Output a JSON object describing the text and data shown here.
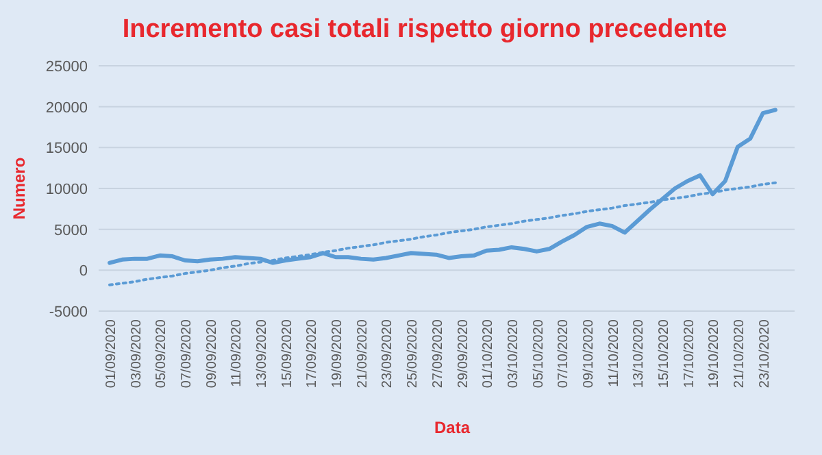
{
  "chart_data": {
    "type": "line",
    "title": "Incremento casi totali rispetto giorno precedente",
    "xlabel": "Data",
    "ylabel": "Numero",
    "categories": [
      "01/09/2020",
      null,
      "03/09/2020",
      null,
      "05/09/2020",
      null,
      "07/09/2020",
      null,
      "09/09/2020",
      null,
      "11/09/2020",
      null,
      "13/09/2020",
      null,
      "15/09/2020",
      null,
      "17/09/2020",
      null,
      "19/09/2020",
      null,
      "21/09/2020",
      null,
      "23/09/2020",
      null,
      "25/09/2020",
      null,
      "27/09/2020",
      null,
      "29/09/2020",
      null,
      "01/10/2020",
      null,
      "03/10/2020",
      null,
      "05/10/2020",
      null,
      "07/10/2020",
      null,
      "09/10/2020",
      null,
      "11/10/2020",
      null,
      "13/10/2020",
      null,
      "15/10/2020",
      null,
      "17/10/2020",
      null,
      "19/10/2020",
      null,
      "21/10/2020",
      null,
      "23/10/2020",
      null
    ],
    "series": [
      {
        "color": "#5b9bd5",
        "line_style": "solid",
        "values": [
          900,
          1300,
          1400,
          1400,
          1800,
          1700,
          1200,
          1100,
          1300,
          1400,
          1600,
          1500,
          1400,
          900,
          1200,
          1400,
          1600,
          2100,
          1600,
          1600,
          1400,
          1300,
          1500,
          1800,
          2100,
          2000,
          1900,
          1500,
          1700,
          1800,
          2400,
          2500,
          2800,
          2600,
          2300,
          2600,
          3500,
          4300,
          5300,
          5700,
          5400,
          4600,
          6000,
          7400,
          8700,
          10000,
          10900,
          11600,
          9300,
          10900,
          15100,
          16100,
          19200,
          19600
        ]
      },
      {
        "color": "#5b9bd5",
        "line_style": "dotted",
        "values": [
          -1800,
          -1600,
          -1400,
          -1100,
          -900,
          -700,
          -400,
          -200,
          0,
          300,
          500,
          800,
          1000,
          1200,
          1500,
          1700,
          1900,
          2200,
          2400,
          2700,
          2900,
          3100,
          3400,
          3600,
          3800,
          4100,
          4300,
          4600,
          4800,
          5000,
          5300,
          5500,
          5700,
          6000,
          6200,
          6400,
          6700,
          6900,
          7200,
          7400,
          7600,
          7900,
          8100,
          8300,
          8600,
          8800,
          9000,
          9300,
          9500,
          9800,
          10000,
          10200,
          10500,
          10700
        ]
      }
    ],
    "ylim": [
      -5000,
      25000
    ],
    "yticks": [
      -5000,
      0,
      5000,
      10000,
      15000,
      20000,
      25000
    ],
    "grid": "y",
    "marker": "none"
  }
}
